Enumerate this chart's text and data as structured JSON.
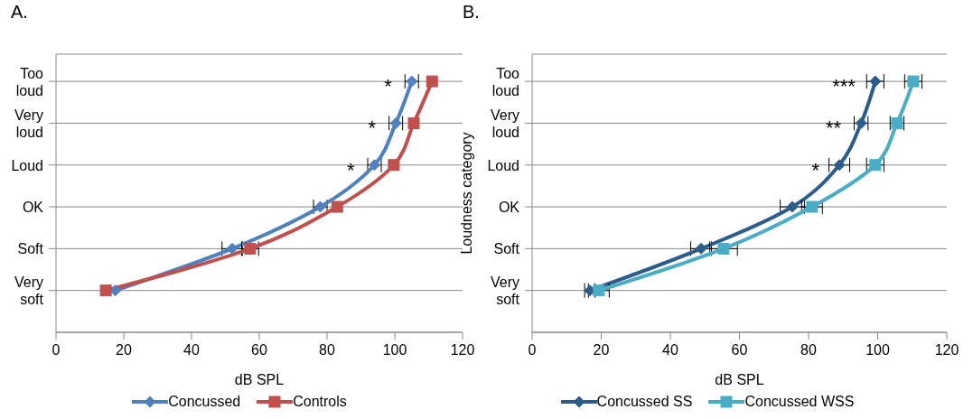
{
  "chart_data": [
    {
      "type": "line",
      "orientation": "horizontal",
      "title": "A.",
      "xlabel": "dB SPL",
      "categories": [
        "Too loud",
        "Very loud",
        "Loud",
        "OK",
        "Soft",
        "Very soft"
      ],
      "xlim": [
        0,
        120
      ],
      "xticks": [
        0,
        20,
        40,
        60,
        80,
        100,
        120
      ],
      "grid": "y",
      "legend": "bottom",
      "series": [
        {
          "name": "Concussed",
          "color": "#4f81bd",
          "marker": "diamond",
          "values": [
            105,
            100.3,
            94,
            78,
            52,
            17.5
          ],
          "errors": [
            2,
            2,
            2,
            2,
            3,
            null
          ]
        },
        {
          "name": "Controls",
          "color": "#c0504d",
          "marker": "square",
          "values": [
            111,
            105.6,
            99.7,
            83,
            57.3,
            14.7
          ],
          "errors": [
            null,
            null,
            null,
            null,
            2.5,
            null
          ]
        }
      ],
      "annotations": [
        "*",
        "*",
        "*"
      ]
    },
    {
      "type": "line",
      "orientation": "horizontal",
      "title": "B.",
      "xlabel": "dB SPL",
      "ylabel": "Loudness category",
      "categories": [
        "Too loud",
        "Very loud",
        "Loud",
        "OK",
        "Soft",
        "Very soft"
      ],
      "xlim": [
        0,
        120
      ],
      "xticks": [
        0,
        20,
        40,
        60,
        80,
        100,
        120
      ],
      "grid": "y",
      "legend": "bottom",
      "series": [
        {
          "name": "Concussed SS",
          "color": "#2c5d8a",
          "marker": "diamond",
          "values": [
            99.3,
            95.2,
            88.9,
            75.3,
            48.9,
            16.7
          ],
          "errors": [
            2.5,
            2,
            3,
            3.5,
            3,
            1.5
          ]
        },
        {
          "name": "Concussed WSS",
          "color": "#4bacc6",
          "marker": "square",
          "values": [
            110.3,
            105.6,
            99.3,
            81,
            55.4,
            19.3
          ],
          "errors": [
            2.5,
            2,
            2.5,
            3,
            4,
            3
          ]
        }
      ],
      "annotations": [
        "***",
        "**",
        "*"
      ]
    }
  ]
}
